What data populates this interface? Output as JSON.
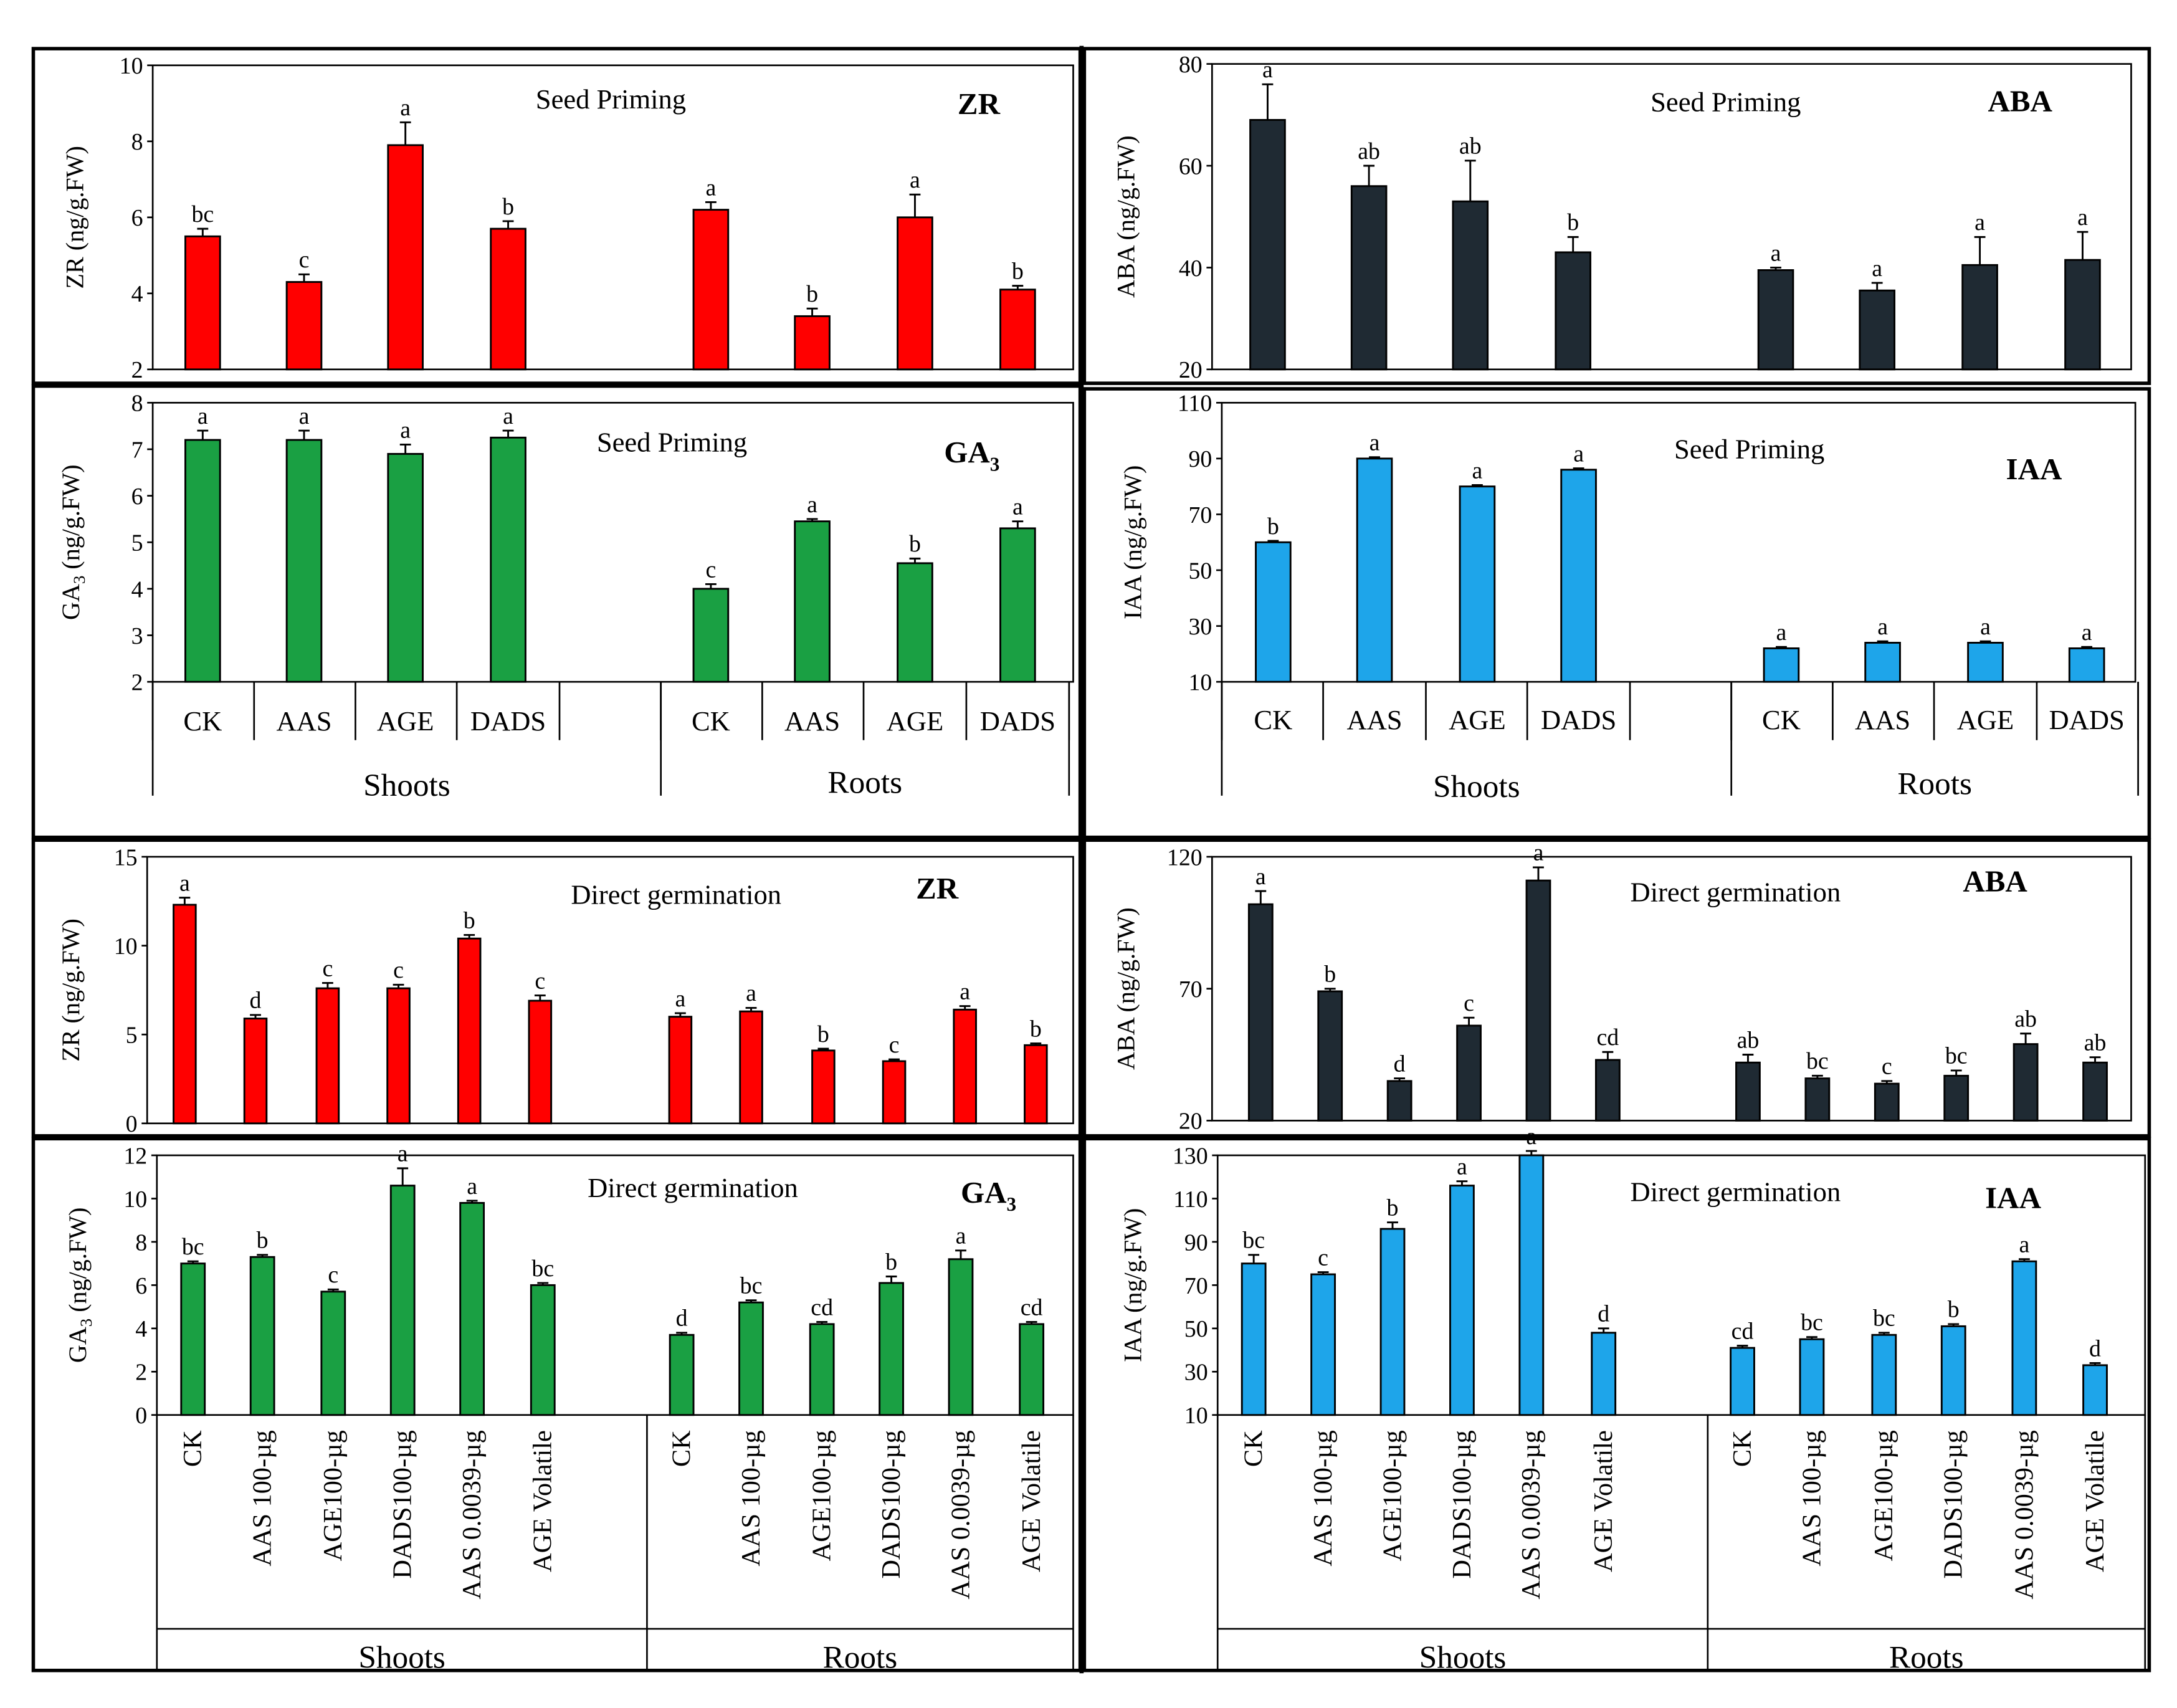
{
  "groups": {
    "shoots": "Shoots",
    "roots": "Roots",
    "seed_categories": [
      "CK",
      "AAS",
      "AGE",
      "DADS"
    ],
    "direct_categories": [
      "CK",
      "AAS 100-µg",
      "AGE100-µg",
      "DADS100-µg",
      "AAS 0.0039-µg",
      "AGE Volatile"
    ]
  },
  "colors": {
    "ZR": "#ff0000",
    "GA3": "#1aa043",
    "ABA": "#1f2a33",
    "IAA": "#1ea5ea"
  },
  "chart_data": [
    {
      "id": "seed-zr",
      "type": "bar",
      "title": "Seed Priming",
      "hormone": "ZR",
      "ylabel": "ZR (ng/g.FW)",
      "ylim": [
        2,
        10
      ],
      "yticks": [
        2,
        4,
        6,
        8,
        10
      ],
      "series": [
        {
          "name": "Shoots",
          "categories": [
            "CK",
            "AAS",
            "AGE",
            "DADS"
          ],
          "values": [
            5.5,
            4.3,
            7.9,
            5.7
          ],
          "errors": [
            0.2,
            0.2,
            0.6,
            0.2
          ],
          "letters": [
            "bc",
            "c",
            "a",
            "b"
          ]
        },
        {
          "name": "Roots",
          "categories": [
            "CK",
            "AAS",
            "AGE",
            "DADS"
          ],
          "values": [
            6.2,
            3.4,
            6.0,
            4.1
          ],
          "errors": [
            0.2,
            0.2,
            0.6,
            0.1
          ],
          "letters": [
            "a",
            "b",
            "a",
            "b"
          ]
        }
      ]
    },
    {
      "id": "seed-aba",
      "type": "bar",
      "title": "Seed Priming",
      "hormone": "ABA",
      "ylabel": "ABA (ng/g.FW)",
      "ylim": [
        20,
        80
      ],
      "yticks": [
        20,
        40,
        60,
        80
      ],
      "series": [
        {
          "name": "Shoots",
          "categories": [
            "CK",
            "AAS",
            "AGE",
            "DADS"
          ],
          "values": [
            69,
            56,
            53,
            43
          ],
          "errors": [
            7,
            4,
            8,
            3
          ],
          "letters": [
            "a",
            "ab",
            "ab",
            "b"
          ]
        },
        {
          "name": "Roots",
          "categories": [
            "CK",
            "AAS",
            "AGE",
            "DADS"
          ],
          "values": [
            39.5,
            35.5,
            40.5,
            41.5
          ],
          "errors": [
            0.5,
            1.5,
            5.5,
            5.5
          ],
          "letters": [
            "a",
            "a",
            "a",
            "a"
          ]
        }
      ]
    },
    {
      "id": "seed-ga3",
      "type": "bar",
      "title": "Seed Priming",
      "hormone": "GA3",
      "ylabel": "GA3 (ng/g.FW)",
      "ylim": [
        2,
        8
      ],
      "yticks": [
        2,
        3,
        4,
        5,
        6,
        7,
        8
      ],
      "series": [
        {
          "name": "Shoots",
          "categories": [
            "CK",
            "AAS",
            "AGE",
            "DADS"
          ],
          "values": [
            7.2,
            7.2,
            6.9,
            7.25
          ],
          "errors": [
            0.2,
            0.2,
            0.2,
            0.15
          ],
          "letters": [
            "a",
            "a",
            "a",
            "a"
          ]
        },
        {
          "name": "Roots",
          "categories": [
            "CK",
            "AAS",
            "AGE",
            "DADS"
          ],
          "values": [
            4.0,
            5.45,
            4.55,
            5.3
          ],
          "errors": [
            0.1,
            0.05,
            0.1,
            0.15
          ],
          "letters": [
            "c",
            "a",
            "b",
            "a"
          ]
        }
      ]
    },
    {
      "id": "seed-iaa",
      "type": "bar",
      "title": "Seed Priming",
      "hormone": "IAA",
      "ylabel": "IAA (ng/g.FW)",
      "ylim": [
        10,
        110
      ],
      "yticks": [
        10,
        30,
        50,
        70,
        90,
        110
      ],
      "series": [
        {
          "name": "Shoots",
          "categories": [
            "CK",
            "AAS",
            "AGE",
            "DADS"
          ],
          "values": [
            60,
            90,
            80,
            86
          ],
          "errors": [
            0.5,
            0.5,
            0.5,
            0.5
          ],
          "letters": [
            "b",
            "a",
            "a",
            "a"
          ]
        },
        {
          "name": "Roots",
          "categories": [
            "CK",
            "AAS",
            "AGE",
            "DADS"
          ],
          "values": [
            22,
            24,
            24,
            22
          ],
          "errors": [
            0.5,
            0.5,
            0.5,
            0.5
          ],
          "letters": [
            "a",
            "a",
            "a",
            "a"
          ]
        }
      ]
    },
    {
      "id": "direct-zr",
      "type": "bar",
      "title": "Direct germination",
      "hormone": "ZR",
      "ylabel": "ZR (ng/g.FW)",
      "ylim": [
        0,
        15
      ],
      "yticks": [
        0,
        5,
        10,
        15
      ],
      "series": [
        {
          "name": "Shoots",
          "categories": [
            "CK",
            "AAS 100-µg",
            "AGE100-µg",
            "DADS100-µg",
            "AAS 0.0039-µg",
            "AGE Volatile"
          ],
          "values": [
            12.3,
            5.9,
            7.6,
            7.6,
            10.4,
            6.9
          ],
          "errors": [
            0.4,
            0.2,
            0.3,
            0.2,
            0.2,
            0.3
          ],
          "letters": [
            "a",
            "d",
            "c",
            "c",
            "b",
            "c"
          ]
        },
        {
          "name": "Roots",
          "categories": [
            "CK",
            "AAS 100-µg",
            "AGE100-µg",
            "DADS100-µg",
            "AAS 0.0039-µg",
            "AGE Volatile"
          ],
          "values": [
            6.0,
            6.3,
            4.1,
            3.5,
            6.4,
            4.4
          ],
          "errors": [
            0.2,
            0.2,
            0.1,
            0.1,
            0.2,
            0.1
          ],
          "letters": [
            "a",
            "a",
            "b",
            "c",
            "a",
            "b"
          ]
        }
      ]
    },
    {
      "id": "direct-aba",
      "type": "bar",
      "title": "Direct germination",
      "hormone": "ABA",
      "ylabel": "ABA (ng/g.FW)",
      "ylim": [
        20,
        120
      ],
      "yticks": [
        20,
        70,
        120
      ],
      "series": [
        {
          "name": "Shoots",
          "categories": [
            "CK",
            "AAS 100-µg",
            "AGE100-µg",
            "DADS100-µg",
            "AAS 0.0039-µg",
            "AGE Volatile"
          ],
          "values": [
            102,
            69,
            35,
            56,
            111,
            43
          ],
          "errors": [
            5,
            1,
            1,
            3,
            5,
            3
          ],
          "letters": [
            "a",
            "b",
            "d",
            "c",
            "a",
            "cd"
          ]
        },
        {
          "name": "Roots",
          "categories": [
            "CK",
            "AAS 100-µg",
            "AGE100-µg",
            "DADS100-µg",
            "AAS 0.0039-µg",
            "AGE Volatile"
          ],
          "values": [
            42,
            36,
            34,
            37,
            49,
            42
          ],
          "errors": [
            3,
            1,
            1,
            2,
            4,
            2
          ],
          "letters": [
            "ab",
            "bc",
            "c",
            "bc",
            "ab",
            "ab"
          ]
        }
      ]
    },
    {
      "id": "direct-ga3",
      "type": "bar",
      "title": "Direct germination",
      "hormone": "GA3",
      "ylabel": "GA3 (ng/g.FW)",
      "ylim": [
        0,
        12
      ],
      "yticks": [
        0,
        2,
        4,
        6,
        8,
        10,
        12
      ],
      "series": [
        {
          "name": "Shoots",
          "categories": [
            "CK",
            "AAS 100-µg",
            "AGE100-µg",
            "DADS100-µg",
            "AAS 0.0039-µg",
            "AGE Volatile"
          ],
          "values": [
            7.0,
            7.3,
            5.7,
            10.6,
            9.8,
            6.0
          ],
          "errors": [
            0.1,
            0.1,
            0.1,
            0.8,
            0.1,
            0.1
          ],
          "letters": [
            "bc",
            "b",
            "c",
            "a",
            "a",
            "bc"
          ]
        },
        {
          "name": "Roots",
          "categories": [
            "CK",
            "AAS 100-µg",
            "AGE100-µg",
            "DADS100-µg",
            "AAS 0.0039-µg",
            "AGE Volatile"
          ],
          "values": [
            3.7,
            5.2,
            4.2,
            6.1,
            7.2,
            4.2
          ],
          "errors": [
            0.1,
            0.1,
            0.1,
            0.3,
            0.4,
            0.1
          ],
          "letters": [
            "d",
            "bc",
            "cd",
            "b",
            "a",
            "cd"
          ]
        }
      ]
    },
    {
      "id": "direct-iaa",
      "type": "bar",
      "title": "Direct germination",
      "hormone": "IAA",
      "ylabel": "IAA (ng/g.FW)",
      "ylim": [
        10,
        130
      ],
      "yticks": [
        10,
        30,
        50,
        70,
        90,
        110,
        130
      ],
      "series": [
        {
          "name": "Shoots",
          "categories": [
            "CK",
            "AAS 100-µg",
            "AGE100-µg",
            "DADS100-µg",
            "AAS 0.0039-µg",
            "AGE Volatile"
          ],
          "values": [
            80,
            75,
            96,
            116,
            130,
            48
          ],
          "errors": [
            4,
            1,
            3,
            2,
            2,
            2
          ],
          "letters": [
            "bc",
            "c",
            "b",
            "a",
            "a",
            "d"
          ]
        },
        {
          "name": "Roots",
          "categories": [
            "CK",
            "AAS 100-µg",
            "AGE100-µg",
            "DADS100-µg",
            "AAS 0.0039-µg",
            "AGE Volatile"
          ],
          "values": [
            41,
            45,
            47,
            51,
            81,
            33
          ],
          "errors": [
            1,
            1,
            1,
            1,
            1,
            1
          ],
          "letters": [
            "cd",
            "bc",
            "bc",
            "b",
            "a",
            "d"
          ]
        }
      ]
    }
  ]
}
